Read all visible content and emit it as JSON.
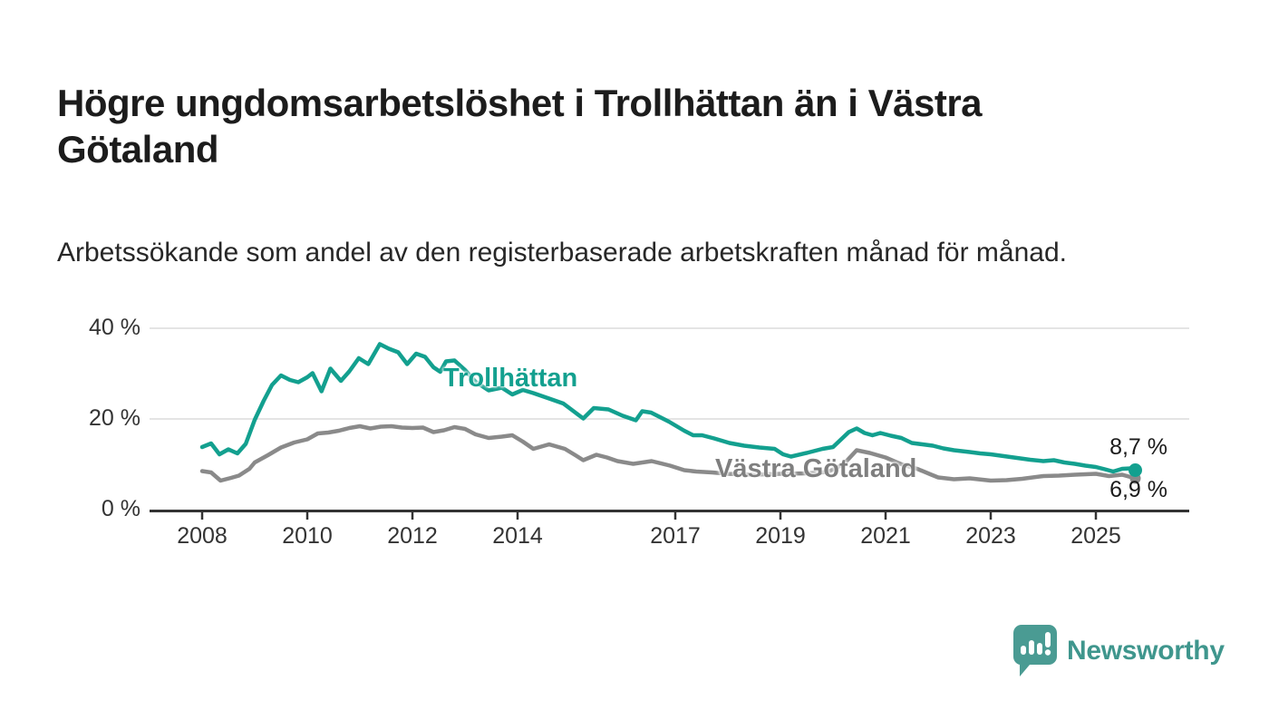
{
  "title": "Högre ungdomsarbetslöshet i Trollhättan än i Västra Götaland",
  "subtitle": "Arbetssökande som andel av den registerbaserade arbetskraften månad för månad.",
  "chart_data": {
    "type": "line",
    "title": "Högre ungdomsarbetslöshet i Trollhättan än i Västra Götaland",
    "subtitle": "Arbetssökande som andel av den registerbaserade arbetskraften månad för månad.",
    "unit": "%",
    "grid": "horizontal",
    "legend_position": "inline-labels",
    "xlim": [
      2007,
      2026.7
    ],
    "ylim": [
      0,
      40
    ],
    "x_ticks": [
      2008,
      2010,
      2012,
      2014,
      2017,
      2019,
      2021,
      2023,
      2025
    ],
    "x_tick_labels": [
      "2008",
      "2010",
      "2012",
      "2014",
      "2017",
      "2019",
      "2021",
      "2023",
      "2025"
    ],
    "y_ticks": [
      0,
      20,
      40
    ],
    "y_tick_labels": [
      "0 %",
      "20 %",
      "40 %"
    ],
    "colors": {
      "grid": "#dcdcdc",
      "axis": "#333333",
      "tick_text": "#333333"
    },
    "series": [
      {
        "name": "Trollhättan",
        "color": "#13a08f",
        "end_label": "8,7 %",
        "last_value": 8.7,
        "end_dot_radius": 7.5,
        "points": [
          [
            2008.0,
            13.8
          ],
          [
            2008.17,
            14.6
          ],
          [
            2008.33,
            12.2
          ],
          [
            2008.5,
            13.3
          ],
          [
            2008.67,
            12.4
          ],
          [
            2008.83,
            14.5
          ],
          [
            2009.0,
            19.8
          ],
          [
            2009.17,
            24.0
          ],
          [
            2009.33,
            27.5
          ],
          [
            2009.5,
            29.6
          ],
          [
            2009.67,
            28.6
          ],
          [
            2009.83,
            28.1
          ],
          [
            2010.0,
            29.2
          ],
          [
            2010.1,
            30.1
          ],
          [
            2010.27,
            26.1
          ],
          [
            2010.44,
            31.1
          ],
          [
            2010.64,
            28.4
          ],
          [
            2010.8,
            30.5
          ],
          [
            2010.98,
            33.4
          ],
          [
            2011.16,
            32.1
          ],
          [
            2011.38,
            36.5
          ],
          [
            2011.55,
            35.5
          ],
          [
            2011.73,
            34.7
          ],
          [
            2011.9,
            32.1
          ],
          [
            2012.07,
            34.4
          ],
          [
            2012.24,
            33.7
          ],
          [
            2012.4,
            31.4
          ],
          [
            2012.53,
            30.4
          ],
          [
            2012.64,
            32.7
          ],
          [
            2012.8,
            32.9
          ],
          [
            2013.0,
            30.8
          ],
          [
            2013.2,
            28.2
          ],
          [
            2013.45,
            26.3
          ],
          [
            2013.7,
            26.9
          ],
          [
            2013.9,
            25.4
          ],
          [
            2014.1,
            26.4
          ],
          [
            2014.3,
            25.7
          ],
          [
            2014.6,
            24.5
          ],
          [
            2014.87,
            23.4
          ],
          [
            2015.1,
            21.4
          ],
          [
            2015.25,
            20.1
          ],
          [
            2015.45,
            22.4
          ],
          [
            2015.73,
            22.1
          ],
          [
            2016.0,
            20.7
          ],
          [
            2016.25,
            19.7
          ],
          [
            2016.37,
            21.7
          ],
          [
            2016.54,
            21.4
          ],
          [
            2016.88,
            19.4
          ],
          [
            2017.17,
            17.4
          ],
          [
            2017.34,
            16.4
          ],
          [
            2017.51,
            16.4
          ],
          [
            2017.74,
            15.7
          ],
          [
            2018.03,
            14.7
          ],
          [
            2018.31,
            14.1
          ],
          [
            2018.6,
            13.7
          ],
          [
            2018.89,
            13.4
          ],
          [
            2019.05,
            12.2
          ],
          [
            2019.2,
            11.7
          ],
          [
            2019.5,
            12.5
          ],
          [
            2019.8,
            13.4
          ],
          [
            2020.0,
            13.8
          ],
          [
            2020.3,
            17.1
          ],
          [
            2020.45,
            17.9
          ],
          [
            2020.6,
            16.9
          ],
          [
            2020.75,
            16.4
          ],
          [
            2020.9,
            16.9
          ],
          [
            2021.1,
            16.3
          ],
          [
            2021.3,
            15.8
          ],
          [
            2021.5,
            14.7
          ],
          [
            2021.7,
            14.4
          ],
          [
            2021.9,
            14.1
          ],
          [
            2022.1,
            13.5
          ],
          [
            2022.3,
            13.1
          ],
          [
            2022.6,
            12.7
          ],
          [
            2022.8,
            12.4
          ],
          [
            2023.0,
            12.2
          ],
          [
            2023.25,
            11.8
          ],
          [
            2023.5,
            11.4
          ],
          [
            2023.75,
            11.0
          ],
          [
            2024.0,
            10.7
          ],
          [
            2024.2,
            10.9
          ],
          [
            2024.4,
            10.4
          ],
          [
            2024.6,
            10.1
          ],
          [
            2024.8,
            9.7
          ],
          [
            2025.0,
            9.4
          ],
          [
            2025.17,
            8.9
          ],
          [
            2025.33,
            8.4
          ],
          [
            2025.5,
            9.0
          ],
          [
            2025.67,
            9.1
          ],
          [
            2025.75,
            8.7
          ]
        ]
      },
      {
        "name": "Västra Götaland",
        "color": "#8a8a8a",
        "end_label": "6,9 %",
        "last_value": 6.9,
        "end_dot_radius": 6,
        "points": [
          [
            2008.0,
            8.5
          ],
          [
            2008.17,
            8.2
          ],
          [
            2008.35,
            6.4
          ],
          [
            2008.55,
            7.0
          ],
          [
            2008.7,
            7.5
          ],
          [
            2008.9,
            9.0
          ],
          [
            2009.0,
            10.4
          ],
          [
            2009.25,
            12.0
          ],
          [
            2009.5,
            13.7
          ],
          [
            2009.75,
            14.8
          ],
          [
            2010.0,
            15.5
          ],
          [
            2010.2,
            16.8
          ],
          [
            2010.4,
            17.0
          ],
          [
            2010.6,
            17.4
          ],
          [
            2010.8,
            18.0
          ],
          [
            2011.0,
            18.4
          ],
          [
            2011.2,
            17.9
          ],
          [
            2011.4,
            18.3
          ],
          [
            2011.6,
            18.4
          ],
          [
            2011.8,
            18.1
          ],
          [
            2012.0,
            18.0
          ],
          [
            2012.2,
            18.1
          ],
          [
            2012.4,
            17.1
          ],
          [
            2012.6,
            17.5
          ],
          [
            2012.8,
            18.2
          ],
          [
            2013.0,
            17.8
          ],
          [
            2013.2,
            16.6
          ],
          [
            2013.45,
            15.8
          ],
          [
            2013.7,
            16.1
          ],
          [
            2013.9,
            16.4
          ],
          [
            2014.1,
            15.0
          ],
          [
            2014.3,
            13.4
          ],
          [
            2014.6,
            14.4
          ],
          [
            2014.9,
            13.4
          ],
          [
            2015.1,
            12.0
          ],
          [
            2015.25,
            10.9
          ],
          [
            2015.5,
            12.1
          ],
          [
            2015.7,
            11.5
          ],
          [
            2015.9,
            10.7
          ],
          [
            2016.2,
            10.1
          ],
          [
            2016.55,
            10.7
          ],
          [
            2016.9,
            9.7
          ],
          [
            2017.17,
            8.7
          ],
          [
            2017.4,
            8.4
          ],
          [
            2017.7,
            8.2
          ],
          [
            2018.0,
            7.9
          ],
          [
            2018.5,
            7.7
          ],
          [
            2019.0,
            7.9
          ],
          [
            2019.5,
            8.0
          ],
          [
            2019.9,
            8.3
          ],
          [
            2020.2,
            10.0
          ],
          [
            2020.45,
            13.1
          ],
          [
            2020.7,
            12.5
          ],
          [
            2021.0,
            11.5
          ],
          [
            2021.3,
            10.0
          ],
          [
            2021.6,
            9.0
          ],
          [
            2021.85,
            7.8
          ],
          [
            2022.0,
            7.1
          ],
          [
            2022.3,
            6.7
          ],
          [
            2022.6,
            6.9
          ],
          [
            2023.0,
            6.4
          ],
          [
            2023.3,
            6.5
          ],
          [
            2023.6,
            6.8
          ],
          [
            2024.0,
            7.4
          ],
          [
            2024.3,
            7.5
          ],
          [
            2024.6,
            7.7
          ],
          [
            2025.0,
            7.9
          ],
          [
            2025.25,
            7.4
          ],
          [
            2025.5,
            7.7
          ],
          [
            2025.75,
            6.9
          ]
        ]
      }
    ]
  },
  "branding": {
    "text": "Newsworthy",
    "icon": "bar-chart-speech-bubble-icon",
    "text_color": "#3f968d",
    "icon_color": "#4a9b93"
  }
}
